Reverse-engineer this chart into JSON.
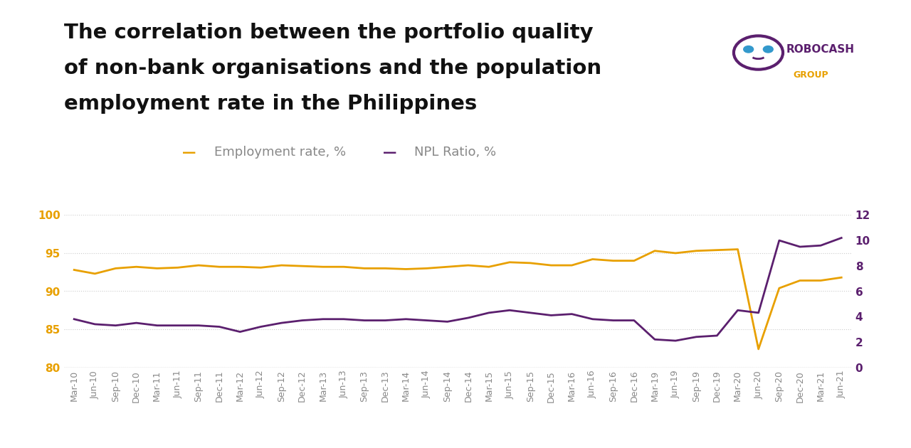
{
  "title_line1": "The correlation between the portfolio quality",
  "title_line2": "of non-bank organisations and the population",
  "title_line3": "employment rate in the Philippines",
  "employment_label": "Employment rate, %",
  "npl_label": "NPL Ratio, %",
  "employment_color": "#E8A000",
  "npl_color": "#5B1F6E",
  "background_color": "#FFFFFF",
  "x_labels": [
    "Mar-10",
    "Jun-10",
    "Sep-10",
    "Dec-10",
    "Mar-11",
    "Jun-11",
    "Sep-11",
    "Dec-11",
    "Mar-12",
    "Jun-12",
    "Sep-12",
    "Dec-12",
    "Mar-13",
    "Jun-13",
    "Sep-13",
    "Dec-13",
    "Mar-14",
    "Jun-14",
    "Sep-14",
    "Dec-14",
    "Mar-15",
    "Jun-15",
    "Sep-15",
    "Dec-15",
    "Mar-16",
    "Jun-16",
    "Sep-16",
    "Dec-16",
    "Mar-19",
    "Jun-19",
    "Sep-19",
    "Dec-19",
    "Mar-20",
    "Jun-20",
    "Sep-20",
    "Dec-20",
    "Mar-21",
    "Jun-21"
  ],
  "employment_values": [
    92.8,
    92.3,
    93.0,
    93.2,
    93.0,
    93.1,
    93.4,
    93.2,
    93.2,
    93.1,
    93.4,
    93.3,
    93.2,
    93.2,
    93.0,
    93.0,
    92.9,
    93.0,
    93.2,
    93.4,
    93.2,
    93.8,
    93.7,
    93.4,
    93.4,
    94.2,
    94.0,
    94.0,
    95.3,
    95.0,
    95.3,
    95.4,
    95.5,
    82.4,
    90.4,
    91.4,
    91.4,
    91.8
  ],
  "npl_values": [
    3.8,
    3.4,
    3.3,
    3.5,
    3.3,
    3.3,
    3.3,
    3.2,
    2.8,
    3.2,
    3.5,
    3.7,
    3.8,
    3.8,
    3.7,
    3.7,
    3.8,
    3.7,
    3.6,
    3.9,
    4.3,
    4.5,
    4.3,
    4.1,
    4.2,
    3.8,
    3.7,
    3.7,
    2.2,
    2.1,
    2.4,
    2.5,
    4.5,
    4.3,
    10.0,
    9.5,
    9.6,
    10.2
  ],
  "left_ylim": [
    80,
    100
  ],
  "right_ylim": [
    0,
    12
  ],
  "left_yticks": [
    80,
    85,
    90,
    95,
    100
  ],
  "right_yticks": [
    0,
    2,
    4,
    6,
    8,
    10,
    12
  ],
  "grid_color": "#CCCCCC",
  "title_fontsize": 21,
  "legend_fontsize": 13,
  "tick_fontsize": 10,
  "tick_color_left": "#E8A000",
  "tick_color_right": "#5B1F6E",
  "label_color": "#888888",
  "robocash_color": "#5B1F6E",
  "group_color": "#E8A000"
}
